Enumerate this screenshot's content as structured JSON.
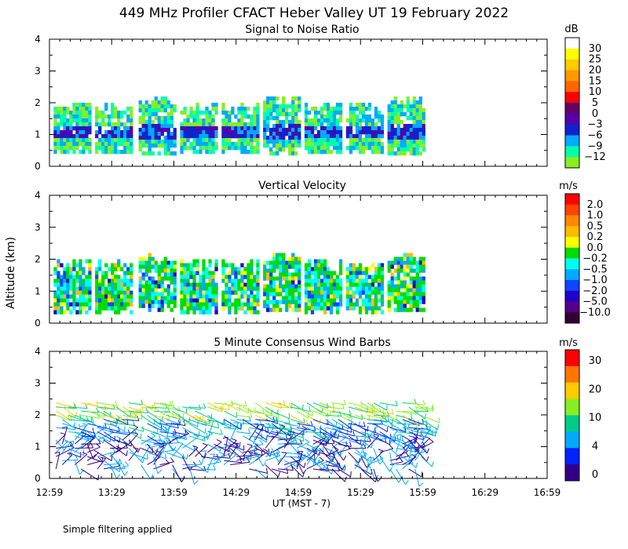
{
  "chart_data": {
    "type": "heatmap",
    "title": "449 MHz Profiler CFACT Heber Valley UT 19 February 2022",
    "ylabel": "Altitude (km)",
    "xlabel": "UT  (MST - 7)",
    "footnote": "Simple filtering applied",
    "ylim": [
      0,
      4
    ],
    "y_ticks": [
      "0",
      "1",
      "2",
      "3",
      "4"
    ],
    "x_range": [
      "12:59",
      "16:59"
    ],
    "x_tick_labels": [
      "12:59",
      "13:29",
      "13:59",
      "14:29",
      "14:59",
      "15:29",
      "15:59",
      "16:29",
      "16:59"
    ],
    "panels": [
      {
        "title": "Signal to Noise Ratio",
        "units": "dB",
        "type": "heatmap",
        "colorbar_labels": [
          "30",
          "25",
          "20",
          "15",
          "10",
          "5",
          "0",
          "−3",
          "−6",
          "−9",
          "−12"
        ],
        "colors": [
          "#ffffff",
          "#ffff00",
          "#ffcc00",
          "#ff9900",
          "#ff6600",
          "#ff0000",
          "#660066",
          "#5500aa",
          "#1122cc",
          "#00aaff",
          "#00ffaa",
          "#88ee22"
        ],
        "data_alt_range_km": [
          0.4,
          2.0
        ]
      },
      {
        "title": "Vertical Velocity",
        "units": "m/s",
        "type": "heatmap",
        "colorbar_labels": [
          "2.0",
          "1.0",
          "0.5",
          "0.2",
          "0.0",
          "−0.2",
          "−0.5",
          "−1.0",
          "−2.0",
          "−5.0",
          "−10.0"
        ],
        "colors": [
          "#ff0000",
          "#ff4400",
          "#ff8800",
          "#ffbb00",
          "#ffff00",
          "#00dd00",
          "#00ffee",
          "#00aaff",
          "#1144ff",
          "#2200cc",
          "#550088",
          "#330033"
        ],
        "data_alt_range_km": [
          0.4,
          2.0
        ]
      },
      {
        "title": "5 Minute Consensus Wind Barbs",
        "units": "m/s",
        "type": "wind_barbs",
        "colorbar_labels": [
          "30",
          "20",
          "10",
          "4",
          "0"
        ],
        "colors": [
          "#ff0000",
          "#ff7700",
          "#ffcc00",
          "#88ee22",
          "#00cc88",
          "#00aaff",
          "#0022ff",
          "#330088"
        ],
        "data_alt_range_km": [
          0.3,
          2.5
        ]
      }
    ],
    "data_segments_ut": [
      [
        "13:01",
        "13:19"
      ],
      [
        "13:21",
        "13:39"
      ],
      [
        "13:42",
        "14:00"
      ],
      [
        "14:02",
        "14:20"
      ],
      [
        "14:22",
        "14:40"
      ],
      [
        "14:42",
        "15:00"
      ],
      [
        "15:02",
        "15:20"
      ],
      [
        "15:22",
        "15:40"
      ],
      [
        "15:42",
        "15:59"
      ]
    ]
  }
}
